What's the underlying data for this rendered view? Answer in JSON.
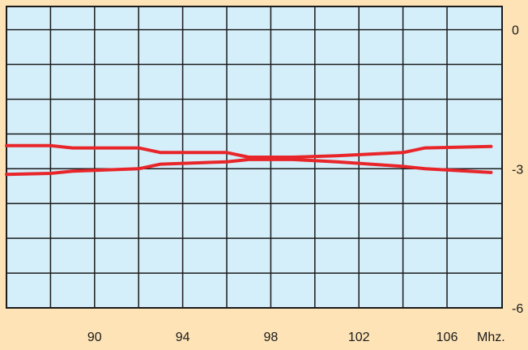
{
  "chart_data": {
    "type": "line",
    "xlabel": "",
    "ylabel": "",
    "x_unit_label": "Mhz.",
    "xlim": [
      86,
      108.5
    ],
    "ylim": [
      -6,
      0.5
    ],
    "x_ticks": [
      {
        "value": 90,
        "label": "90"
      },
      {
        "value": 94,
        "label": "94"
      },
      {
        "value": 98,
        "label": "98"
      },
      {
        "value": 102,
        "label": "102"
      },
      {
        "value": 106,
        "label": "106"
      }
    ],
    "y_ticks": [
      {
        "value": 0,
        "label": "0"
      },
      {
        "value": -3,
        "label": "-3"
      },
      {
        "value": -6,
        "label": "-6"
      }
    ],
    "grid": true,
    "series": [
      {
        "color": "#e8262a",
        "x": [
          86,
          88,
          89,
          92,
          93,
          96,
          97,
          99,
          101,
          104,
          105,
          108
        ],
        "y": [
          -2.5,
          -2.5,
          -2.55,
          -2.55,
          -2.65,
          -2.65,
          -2.75,
          -2.75,
          -2.72,
          -2.65,
          -2.55,
          -2.52
        ]
      },
      {
        "color": "#e8262a",
        "x": [
          86,
          88,
          89,
          92,
          93,
          96,
          97,
          99,
          101,
          104,
          105,
          108
        ],
        "y": [
          -3.12,
          -3.1,
          -3.05,
          -3.0,
          -2.9,
          -2.85,
          -2.8,
          -2.8,
          -2.85,
          -2.95,
          -3.0,
          -3.08
        ]
      }
    ]
  }
}
